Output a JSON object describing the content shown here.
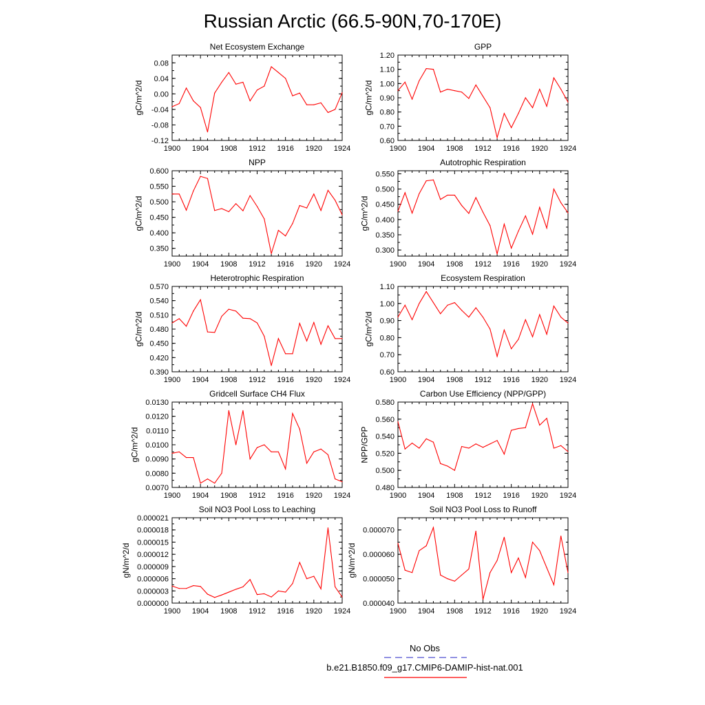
{
  "page_title": "Russian Arctic (66.5-90N,70-170E)",
  "legend": {
    "obs_label": "No Obs",
    "obs_color": "#5050d0",
    "model_label": "b.e21.B1850.f09_g17.CMIP6-DAMIP-hist-nat.001",
    "model_color": "#ff0000"
  },
  "chart_data": [
    {
      "type": "line",
      "title": "Net Ecosystem Exchange",
      "ylabel": "gC/m^2/d",
      "xlim": [
        1900,
        1924
      ],
      "xticks": [
        "1900",
        "1904",
        "1908",
        "1912",
        "1916",
        "1920",
        "1924"
      ],
      "ylim": [
        -0.12,
        0.1
      ],
      "yticks": [
        "-0.12",
        "-0.08",
        "-0.04",
        "0.00",
        "0.04",
        "0.08"
      ],
      "x": [
        1900,
        1901,
        1902,
        1903,
        1904,
        1905,
        1906,
        1907,
        1908,
        1909,
        1910,
        1911,
        1912,
        1913,
        1914,
        1915,
        1916,
        1917,
        1918,
        1919,
        1920,
        1921,
        1922,
        1923,
        1924
      ],
      "series": [
        {
          "values": [
            -0.033,
            -0.025,
            0.015,
            -0.018,
            -0.035,
            -0.098,
            0.002,
            0.03,
            0.055,
            0.025,
            0.03,
            -0.018,
            0.01,
            0.02,
            0.07,
            0.055,
            0.04,
            -0.005,
            0.002,
            -0.028,
            -0.028,
            -0.023,
            -0.048,
            -0.04,
            0.003
          ]
        }
      ]
    },
    {
      "type": "line",
      "title": "GPP",
      "ylabel": "gC/m^2/d",
      "xlim": [
        1900,
        1924
      ],
      "xticks": [
        "1900",
        "1904",
        "1908",
        "1912",
        "1916",
        "1920",
        "1924"
      ],
      "ylim": [
        0.6,
        1.2
      ],
      "yticks": [
        "0.60",
        "0.70",
        "0.80",
        "0.90",
        "1.00",
        "1.10",
        "1.20"
      ],
      "x": [
        1900,
        1901,
        1902,
        1903,
        1904,
        1905,
        1906,
        1907,
        1908,
        1909,
        1910,
        1911,
        1912,
        1913,
        1914,
        1915,
        1916,
        1917,
        1918,
        1919,
        1920,
        1921,
        1922,
        1923,
        1924
      ],
      "series": [
        {
          "values": [
            0.95,
            1.01,
            0.89,
            1.02,
            1.105,
            1.1,
            0.94,
            0.96,
            0.95,
            0.94,
            0.895,
            0.99,
            0.91,
            0.83,
            0.62,
            0.79,
            0.69,
            0.79,
            0.9,
            0.83,
            0.96,
            0.84,
            1.04,
            0.96,
            0.87
          ]
        }
      ]
    },
    {
      "type": "line",
      "title": "NPP",
      "ylabel": "gC/m^2/d",
      "xlim": [
        1900,
        1924
      ],
      "xticks": [
        "1900",
        "1904",
        "1908",
        "1912",
        "1916",
        "1920",
        "1924"
      ],
      "ylim": [
        0.325,
        0.6
      ],
      "yticks": [
        "0.350",
        "0.400",
        "0.450",
        "0.500",
        "0.550",
        "0.600"
      ],
      "x": [
        1900,
        1901,
        1902,
        1903,
        1904,
        1905,
        1906,
        1907,
        1908,
        1909,
        1910,
        1911,
        1912,
        1913,
        1914,
        1915,
        1916,
        1917,
        1918,
        1919,
        1920,
        1921,
        1922,
        1923,
        1924
      ],
      "series": [
        {
          "values": [
            0.525,
            0.525,
            0.473,
            0.535,
            0.582,
            0.575,
            0.472,
            0.478,
            0.468,
            0.494,
            0.471,
            0.52,
            0.485,
            0.445,
            0.333,
            0.408,
            0.39,
            0.43,
            0.488,
            0.48,
            0.525,
            0.472,
            0.537,
            0.505,
            0.458
          ]
        }
      ]
    },
    {
      "type": "line",
      "title": "Autotrophic Respiration",
      "ylabel": "gC/m^2/d",
      "xlim": [
        1900,
        1924
      ],
      "xticks": [
        "1900",
        "1904",
        "1908",
        "1912",
        "1916",
        "1920",
        "1924"
      ],
      "ylim": [
        0.28,
        0.56
      ],
      "yticks": [
        "0.300",
        "0.350",
        "0.400",
        "0.450",
        "0.500",
        "0.550"
      ],
      "x": [
        1900,
        1901,
        1902,
        1903,
        1904,
        1905,
        1906,
        1907,
        1908,
        1909,
        1910,
        1911,
        1912,
        1913,
        1914,
        1915,
        1916,
        1917,
        1918,
        1919,
        1920,
        1921,
        1922,
        1923,
        1924
      ],
      "series": [
        {
          "values": [
            0.427,
            0.488,
            0.421,
            0.485,
            0.527,
            0.53,
            0.466,
            0.48,
            0.48,
            0.446,
            0.42,
            0.472,
            0.424,
            0.38,
            0.287,
            0.385,
            0.306,
            0.362,
            0.412,
            0.352,
            0.44,
            0.372,
            0.5,
            0.455,
            0.422
          ]
        }
      ]
    },
    {
      "type": "line",
      "title": "Heterotrophic Respiration",
      "ylabel": "gC/m^2/d",
      "xlim": [
        1900,
        1924
      ],
      "xticks": [
        "1900",
        "1904",
        "1908",
        "1912",
        "1916",
        "1920",
        "1924"
      ],
      "ylim": [
        0.39,
        0.57
      ],
      "yticks": [
        "0.390",
        "0.420",
        "0.450",
        "0.480",
        "0.510",
        "0.540",
        "0.570"
      ],
      "x": [
        1900,
        1901,
        1902,
        1903,
        1904,
        1905,
        1906,
        1907,
        1908,
        1909,
        1910,
        1911,
        1912,
        1913,
        1914,
        1915,
        1916,
        1917,
        1918,
        1919,
        1920,
        1921,
        1922,
        1923,
        1924
      ],
      "series": [
        {
          "values": [
            0.493,
            0.502,
            0.486,
            0.518,
            0.542,
            0.474,
            0.473,
            0.507,
            0.522,
            0.518,
            0.503,
            0.502,
            0.493,
            0.465,
            0.403,
            0.46,
            0.428,
            0.428,
            0.492,
            0.455,
            0.494,
            0.448,
            0.487,
            0.46,
            0.46
          ]
        }
      ]
    },
    {
      "type": "line",
      "title": "Ecosystem Respiration",
      "ylabel": "gC/m^2/d",
      "xlim": [
        1900,
        1924
      ],
      "xticks": [
        "1900",
        "1904",
        "1908",
        "1912",
        "1916",
        "1920",
        "1924"
      ],
      "ylim": [
        0.6,
        1.1
      ],
      "yticks": [
        "0.60",
        "0.70",
        "0.80",
        "0.90",
        "1.00",
        "1.10"
      ],
      "x": [
        1900,
        1901,
        1902,
        1903,
        1904,
        1905,
        1906,
        1907,
        1908,
        1909,
        1910,
        1911,
        1912,
        1913,
        1914,
        1915,
        1916,
        1917,
        1918,
        1919,
        1920,
        1921,
        1922,
        1923,
        1924
      ],
      "series": [
        {
          "values": [
            0.92,
            0.99,
            0.905,
            1.0,
            1.07,
            1.005,
            0.94,
            0.99,
            1.005,
            0.96,
            0.92,
            0.975,
            0.92,
            0.85,
            0.69,
            0.845,
            0.735,
            0.79,
            0.905,
            0.805,
            0.935,
            0.82,
            0.985,
            0.92,
            0.885
          ]
        }
      ]
    },
    {
      "type": "line",
      "title": "Gridcell Surface CH4 Flux",
      "ylabel": "gC/m^2/d",
      "xlim": [
        1900,
        1924
      ],
      "xticks": [
        "1900",
        "1904",
        "1908",
        "1912",
        "1916",
        "1920",
        "1924"
      ],
      "ylim": [
        0.007,
        0.013
      ],
      "yticks": [
        "0.0070",
        "0.0080",
        "0.0090",
        "0.0100",
        "0.0110",
        "0.0120",
        "0.0130"
      ],
      "x": [
        1900,
        1901,
        1902,
        1903,
        1904,
        1905,
        1906,
        1907,
        1908,
        1909,
        1910,
        1911,
        1912,
        1913,
        1914,
        1915,
        1916,
        1917,
        1918,
        1919,
        1920,
        1921,
        1922,
        1923,
        1924
      ],
      "series": [
        {
          "values": [
            0.0094,
            0.0095,
            0.0091,
            0.0091,
            0.0073,
            0.0076,
            0.0073,
            0.008,
            0.0124,
            0.01,
            0.0124,
            0.009,
            0.0098,
            0.01,
            0.0095,
            0.0095,
            0.0083,
            0.0122,
            0.0111,
            0.0087,
            0.0095,
            0.0097,
            0.0093,
            0.0076,
            0.0074
          ]
        }
      ]
    },
    {
      "type": "line",
      "title": "Carbon Use Efficiency (NPP/GPP)",
      "ylabel": "NPP/GPP",
      "xlim": [
        1900,
        1924
      ],
      "xticks": [
        "1900",
        "1904",
        "1908",
        "1912",
        "1916",
        "1920",
        "1924"
      ],
      "ylim": [
        0.48,
        0.58
      ],
      "yticks": [
        "0.480",
        "0.500",
        "0.520",
        "0.540",
        "0.560",
        "0.580"
      ],
      "x": [
        1900,
        1901,
        1902,
        1903,
        1904,
        1905,
        1906,
        1907,
        1908,
        1909,
        1910,
        1911,
        1912,
        1913,
        1914,
        1915,
        1916,
        1917,
        1918,
        1919,
        1920,
        1921,
        1922,
        1923,
        1924
      ],
      "series": [
        {
          "values": [
            0.557,
            0.525,
            0.532,
            0.526,
            0.537,
            0.533,
            0.508,
            0.505,
            0.5,
            0.528,
            0.526,
            0.531,
            0.527,
            0.531,
            0.535,
            0.519,
            0.547,
            0.549,
            0.55,
            0.578,
            0.553,
            0.561,
            0.526,
            0.529,
            0.522
          ]
        }
      ]
    },
    {
      "type": "line",
      "title": "Soil NO3 Pool Loss to Leaching",
      "ylabel": "gN/m^2/d",
      "xlim": [
        1900,
        1924
      ],
      "xticks": [
        "1900",
        "1904",
        "1908",
        "1912",
        "1916",
        "1920",
        "1924"
      ],
      "ylim": [
        0.0,
        2.1e-05
      ],
      "yticks": [
        "0.000000",
        "0.000003",
        "0.000006",
        "0.000009",
        "0.000012",
        "0.000015",
        "0.000018",
        "0.000021"
      ],
      "x": [
        1900,
        1901,
        1902,
        1903,
        1904,
        1905,
        1906,
        1907,
        1908,
        1909,
        1910,
        1911,
        1912,
        1913,
        1914,
        1915,
        1916,
        1917,
        1918,
        1919,
        1920,
        1921,
        1922,
        1923,
        1924
      ],
      "series": [
        {
          "values": [
            4.2e-06,
            3.6e-06,
            3.6e-06,
            4.3e-06,
            4.1e-06,
            2.2e-06,
            1.4e-06,
            2e-06,
            2.7e-06,
            3.4e-06,
            4e-06,
            5.8e-06,
            2.1e-06,
            2.3e-06,
            1.5e-06,
            3e-06,
            2.7e-06,
            4.8e-06,
            1e-05,
            6e-06,
            6.6e-06,
            3.5e-06,
            1.85e-05,
            4e-06,
            1.5e-06
          ]
        }
      ]
    },
    {
      "type": "line",
      "title": "Soil NO3 Pool Loss to Runoff",
      "ylabel": "gN/m^2/d",
      "xlim": [
        1900,
        1924
      ],
      "xticks": [
        "1900",
        "1904",
        "1908",
        "1912",
        "1916",
        "1920",
        "1924"
      ],
      "ylim": [
        4e-05,
        7.5e-05
      ],
      "yticks": [
        "0.000040",
        "0.000050",
        "0.000060",
        "0.000070"
      ],
      "x": [
        1900,
        1901,
        1902,
        1903,
        1904,
        1905,
        1906,
        1907,
        1908,
        1909,
        1910,
        1911,
        1912,
        1913,
        1914,
        1915,
        1916,
        1917,
        1918,
        1919,
        1920,
        1921,
        1922,
        1923,
        1924
      ],
      "series": [
        {
          "values": [
            6.45e-05,
            5.35e-05,
            5.25e-05,
            6.15e-05,
            6.35e-05,
            7.1e-05,
            5.15e-05,
            5e-05,
            4.9e-05,
            5.15e-05,
            5.4e-05,
            6.95e-05,
            4.15e-05,
            5.25e-05,
            5.75e-05,
            6.7e-05,
            5.25e-05,
            5.85e-05,
            5.05e-05,
            6.5e-05,
            6.15e-05,
            5.45e-05,
            4.75e-05,
            6.75e-05,
            5.25e-05
          ]
        }
      ]
    }
  ]
}
